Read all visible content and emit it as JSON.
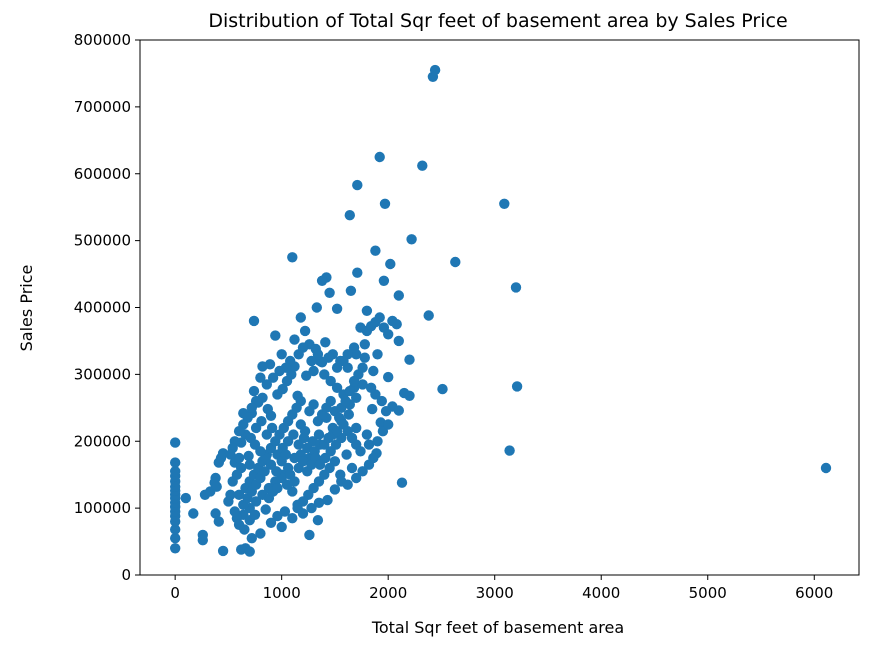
{
  "chart_data": {
    "type": "scatter",
    "title": "Distribution of Total Sqr feet of basement area by Sales Price",
    "xlabel": "Total Sqr feet of basement area",
    "ylabel": "Sales Price",
    "xlim": [
      -330,
      6420
    ],
    "ylim": [
      0,
      800000
    ],
    "x_ticks": [
      0,
      1000,
      2000,
      3000,
      4000,
      5000,
      6000
    ],
    "y_ticks": [
      0,
      100000,
      200000,
      300000,
      400000,
      500000,
      600000,
      700000,
      800000
    ],
    "grid": false,
    "marker_color": "#1f77b4",
    "series": [
      {
        "points": [
          [
            0,
            40000
          ],
          [
            0,
            55000
          ],
          [
            0,
            68000
          ],
          [
            0,
            80000
          ],
          [
            0,
            88000
          ],
          [
            0,
            95000
          ],
          [
            0,
            102000
          ],
          [
            0,
            108000
          ],
          [
            0,
            115000
          ],
          [
            0,
            120000
          ],
          [
            0,
            126000
          ],
          [
            0,
            132000
          ],
          [
            0,
            140000
          ],
          [
            0,
            148000
          ],
          [
            0,
            155000
          ],
          [
            0,
            168000
          ],
          [
            0,
            198000
          ],
          [
            2420,
            745000
          ],
          [
            2440,
            755000
          ],
          [
            1920,
            625000
          ],
          [
            2320,
            612000
          ],
          [
            1710,
            583000
          ],
          [
            1640,
            538000
          ],
          [
            1970,
            555000
          ],
          [
            3090,
            555000
          ],
          [
            2220,
            502000
          ],
          [
            1880,
            485000
          ],
          [
            1100,
            475000
          ],
          [
            2630,
            468000
          ],
          [
            2020,
            465000
          ],
          [
            3200,
            430000
          ],
          [
            2380,
            388000
          ],
          [
            1710,
            452000
          ],
          [
            1420,
            445000
          ],
          [
            1380,
            440000
          ],
          [
            1960,
            440000
          ],
          [
            1650,
            425000
          ],
          [
            1450,
            422000
          ],
          [
            2100,
            418000
          ],
          [
            1330,
            400000
          ],
          [
            1520,
            398000
          ],
          [
            1180,
            385000
          ],
          [
            740,
            380000
          ],
          [
            1800,
            395000
          ],
          [
            1220,
            365000
          ],
          [
            940,
            358000
          ],
          [
            1120,
            352000
          ],
          [
            1260,
            345000
          ],
          [
            1410,
            348000
          ],
          [
            2100,
            350000
          ],
          [
            1780,
            345000
          ],
          [
            1900,
            330000
          ],
          [
            2200,
            322000
          ],
          [
            1700,
            330000
          ],
          [
            1320,
            338000
          ],
          [
            1000,
            330000
          ],
          [
            890,
            315000
          ],
          [
            820,
            312000
          ],
          [
            1550,
            320000
          ],
          [
            1620,
            310000
          ],
          [
            1860,
            305000
          ],
          [
            2000,
            296000
          ],
          [
            1680,
            280000
          ],
          [
            1760,
            285000
          ],
          [
            2510,
            278000
          ],
          [
            3210,
            282000
          ],
          [
            2150,
            272000
          ],
          [
            2200,
            268000
          ],
          [
            2040,
            252000
          ],
          [
            2100,
            246000
          ],
          [
            1850,
            248000
          ],
          [
            1930,
            228000
          ],
          [
            1800,
            210000
          ],
          [
            1700,
            220000
          ],
          [
            1820,
            195000
          ],
          [
            1890,
            182000
          ],
          [
            3140,
            186000
          ],
          [
            6110,
            160000
          ],
          [
            2130,
            138000
          ],
          [
            1260,
            60000
          ],
          [
            1340,
            82000
          ],
          [
            1150,
            105000
          ],
          [
            1030,
            95000
          ],
          [
            960,
            88000
          ],
          [
            800,
            62000
          ],
          [
            720,
            55000
          ],
          [
            660,
            40000
          ],
          [
            620,
            38000
          ],
          [
            700,
            35000
          ],
          [
            450,
            36000
          ],
          [
            380,
            92000
          ],
          [
            410,
            80000
          ],
          [
            260,
            60000
          ],
          [
            260,
            52000
          ],
          [
            170,
            92000
          ],
          [
            280,
            120000
          ],
          [
            330,
            125000
          ],
          [
            380,
            145000
          ],
          [
            410,
            168000
          ],
          [
            430,
            175000
          ],
          [
            450,
            182000
          ],
          [
            370,
            138000
          ],
          [
            390,
            132000
          ],
          [
            100,
            115000
          ],
          [
            500,
            110000
          ],
          [
            520,
            120000
          ],
          [
            560,
            168000
          ],
          [
            600,
            175000
          ],
          [
            620,
            198000
          ],
          [
            640,
            242000
          ],
          [
            660,
            210000
          ],
          [
            690,
            178000
          ],
          [
            700,
            165000
          ],
          [
            720,
            242000
          ],
          [
            740,
            275000
          ],
          [
            780,
            258000
          ],
          [
            820,
            265000
          ],
          [
            870,
            248000
          ],
          [
            900,
            238000
          ],
          [
            960,
            270000
          ],
          [
            1010,
            278000
          ],
          [
            1050,
            290000
          ],
          [
            1090,
            300000
          ],
          [
            1120,
            312000
          ],
          [
            1150,
            268000
          ],
          [
            1180,
            260000
          ],
          [
            1230,
            298000
          ],
          [
            1300,
            305000
          ],
          [
            1360,
            320000
          ],
          [
            1400,
            300000
          ],
          [
            1460,
            290000
          ],
          [
            1520,
            280000
          ],
          [
            1580,
            270000
          ],
          [
            1640,
            255000
          ],
          [
            1700,
            265000
          ],
          [
            1630,
            240000
          ],
          [
            1560,
            230000
          ],
          [
            1480,
            220000
          ],
          [
            1420,
            235000
          ],
          [
            1350,
            210000
          ],
          [
            1290,
            200000
          ],
          [
            1240,
            190000
          ],
          [
            1180,
            180000
          ],
          [
            1120,
            175000
          ],
          [
            1060,
            160000
          ],
          [
            1000,
            150000
          ],
          [
            940,
            140000
          ],
          [
            880,
            130000
          ],
          [
            820,
            120000
          ],
          [
            760,
            110000
          ],
          [
            700,
            100000
          ],
          [
            640,
            90000
          ],
          [
            580,
            85000
          ],
          [
            540,
            140000
          ],
          [
            580,
            150000
          ],
          [
            620,
            160000
          ],
          [
            660,
            130000
          ],
          [
            700,
            140000
          ],
          [
            740,
            150000
          ],
          [
            780,
            160000
          ],
          [
            820,
            170000
          ],
          [
            860,
            180000
          ],
          [
            900,
            190000
          ],
          [
            940,
            200000
          ],
          [
            980,
            210000
          ],
          [
            1020,
            220000
          ],
          [
            1060,
            230000
          ],
          [
            1100,
            240000
          ],
          [
            1140,
            250000
          ],
          [
            1180,
            225000
          ],
          [
            1220,
            215000
          ],
          [
            1260,
            245000
          ],
          [
            1300,
            255000
          ],
          [
            1340,
            230000
          ],
          [
            1380,
            240000
          ],
          [
            1420,
            250000
          ],
          [
            1460,
            260000
          ],
          [
            1500,
            245000
          ],
          [
            1540,
            235000
          ],
          [
            1580,
            225000
          ],
          [
            1620,
            215000
          ],
          [
            1660,
            205000
          ],
          [
            1700,
            195000
          ],
          [
            1740,
            185000
          ],
          [
            1500,
            170000
          ],
          [
            1450,
            160000
          ],
          [
            1400,
            150000
          ],
          [
            1350,
            140000
          ],
          [
            1300,
            130000
          ],
          [
            1250,
            120000
          ],
          [
            1200,
            110000
          ],
          [
            1150,
            100000
          ],
          [
            1100,
            125000
          ],
          [
            1050,
            135000
          ],
          [
            1000,
            145000
          ],
          [
            950,
            155000
          ],
          [
            900,
            165000
          ],
          [
            850,
            175000
          ],
          [
            800,
            185000
          ],
          [
            750,
            195000
          ],
          [
            710,
            205000
          ],
          [
            760,
            220000
          ],
          [
            810,
            230000
          ],
          [
            860,
            210000
          ],
          [
            910,
            220000
          ],
          [
            960,
            180000
          ],
          [
            1010,
            190000
          ],
          [
            1060,
            200000
          ],
          [
            1110,
            210000
          ],
          [
            1160,
            195000
          ],
          [
            1210,
            205000
          ],
          [
            1260,
            175000
          ],
          [
            1310,
            185000
          ],
          [
            1360,
            195000
          ],
          [
            1410,
            175000
          ],
          [
            1460,
            185000
          ],
          [
            1510,
            195000
          ],
          [
            1560,
            205000
          ],
          [
            1610,
            180000
          ],
          [
            1660,
            160000
          ],
          [
            1550,
            150000
          ],
          [
            600,
            120000
          ],
          [
            640,
            105000
          ],
          [
            680,
            115000
          ],
          [
            720,
            125000
          ],
          [
            760,
            135000
          ],
          [
            800,
            145000
          ],
          [
            840,
            155000
          ],
          [
            880,
            115000
          ],
          [
            920,
            125000
          ],
          [
            960,
            130000
          ],
          [
            1000,
            170000
          ],
          [
            1040,
            180000
          ],
          [
            1080,
            150000
          ],
          [
            1120,
            140000
          ],
          [
            1160,
            160000
          ],
          [
            1200,
            170000
          ],
          [
            1240,
            155000
          ],
          [
            1280,
            165000
          ],
          [
            1320,
            175000
          ],
          [
            1360,
            165000
          ],
          [
            1400,
            195000
          ],
          [
            1440,
            205000
          ],
          [
            1480,
            210000
          ],
          [
            1520,
            215000
          ],
          [
            1560,
            250000
          ],
          [
            1600,
            260000
          ],
          [
            1640,
            275000
          ],
          [
            1680,
            290000
          ],
          [
            1720,
            300000
          ],
          [
            1760,
            310000
          ],
          [
            1780,
            325000
          ],
          [
            1800,
            365000
          ],
          [
            1840,
            372000
          ],
          [
            1880,
            378000
          ],
          [
            1920,
            385000
          ],
          [
            1960,
            370000
          ],
          [
            2000,
            360000
          ],
          [
            2040,
            380000
          ],
          [
            2080,
            375000
          ],
          [
            1740,
            370000
          ],
          [
            1680,
            340000
          ],
          [
            1620,
            330000
          ],
          [
            1580,
            320000
          ],
          [
            1520,
            310000
          ],
          [
            1480,
            330000
          ],
          [
            1440,
            325000
          ],
          [
            1380,
            318000
          ],
          [
            1340,
            330000
          ],
          [
            1280,
            320000
          ],
          [
            1200,
            340000
          ],
          [
            1160,
            330000
          ],
          [
            1080,
            320000
          ],
          [
            1040,
            310000
          ],
          [
            980,
            305000
          ],
          [
            920,
            295000
          ],
          [
            860,
            285000
          ],
          [
            800,
            295000
          ],
          [
            760,
            260000
          ],
          [
            720,
            250000
          ],
          [
            680,
            235000
          ],
          [
            640,
            225000
          ],
          [
            600,
            215000
          ],
          [
            560,
            200000
          ],
          [
            540,
            190000
          ],
          [
            520,
            180000
          ],
          [
            560,
            95000
          ],
          [
            600,
            75000
          ],
          [
            650,
            68000
          ],
          [
            700,
            82000
          ],
          [
            750,
            90000
          ],
          [
            850,
            98000
          ],
          [
            900,
            78000
          ],
          [
            1000,
            72000
          ],
          [
            1100,
            85000
          ],
          [
            1200,
            92000
          ],
          [
            1280,
            100000
          ],
          [
            1350,
            108000
          ],
          [
            1430,
            112000
          ],
          [
            1500,
            128000
          ],
          [
            1560,
            140000
          ],
          [
            1620,
            135000
          ],
          [
            1700,
            145000
          ],
          [
            1760,
            155000
          ],
          [
            1820,
            165000
          ],
          [
            1860,
            175000
          ],
          [
            1900,
            200000
          ],
          [
            1950,
            215000
          ],
          [
            2000,
            225000
          ],
          [
            1980,
            245000
          ],
          [
            1940,
            260000
          ],
          [
            1880,
            270000
          ],
          [
            1840,
            280000
          ]
        ]
      }
    ]
  }
}
